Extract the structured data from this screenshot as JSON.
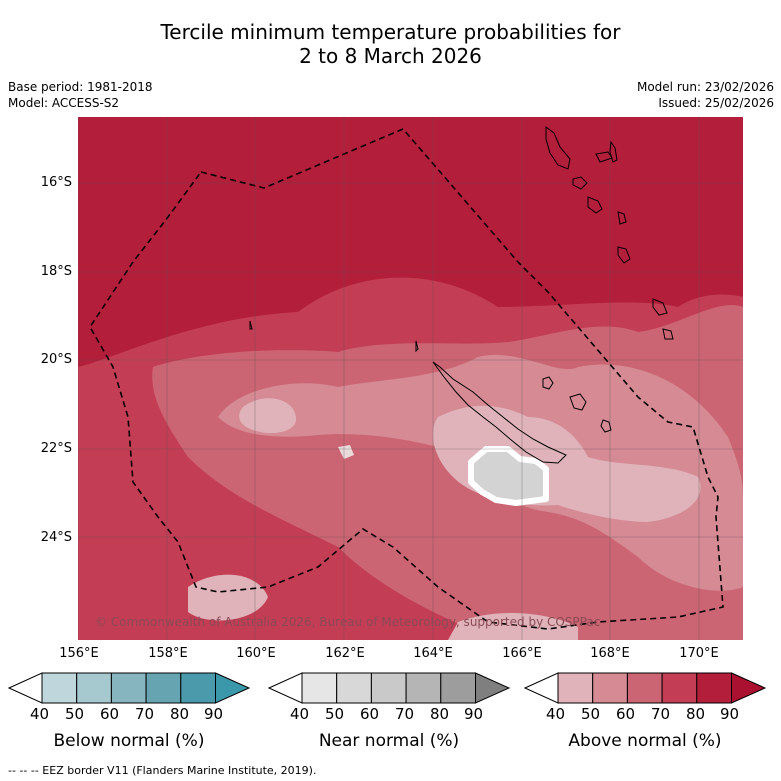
{
  "header": {
    "title_line1": "Tercile minimum temperature probabilities for",
    "title_line2": "2 to 8 March 2026"
  },
  "meta": {
    "base_period": "Base period: 1981-2018",
    "model": "Model: ACCESS-S2",
    "model_run": "Model run: 23/02/2026",
    "issued": "Issued: 25/02/2026"
  },
  "map": {
    "lat_labels": [
      "16°S",
      "18°S",
      "20°S",
      "22°S",
      "24°S"
    ],
    "lon_labels": [
      "156°E",
      "158°E",
      "160°E",
      "162°E",
      "164°E",
      "166°E",
      "168°E",
      "170°E"
    ],
    "copyright": "© Commonwealth of Australia 2026, Bureau of Meteorology, supported by COSPPac",
    "colors": {
      "above_80_90": "#b31e3b",
      "above_70_80": "#c33d54",
      "above_60_70": "#cc6573",
      "above_50_60": "#d58a94",
      "above_40_50": "#dfb3b9",
      "near_normal": "#d3d3d3"
    }
  },
  "colorbars": [
    {
      "title": "Below normal (%)",
      "ticks": [
        "40",
        "50",
        "60",
        "70",
        "80",
        "90"
      ],
      "colors": [
        "#c0d6dd",
        "#a6c8cf",
        "#86b4bf",
        "#66a4b2",
        "#4a9aab",
        "#3b98ab"
      ]
    },
    {
      "title": "Near normal (%)",
      "ticks": [
        "40",
        "50",
        "60",
        "70",
        "80",
        "90"
      ],
      "colors": [
        "#e6e6e6",
        "#d8d8d8",
        "#c9c9c9",
        "#b5b5b5",
        "#9d9d9d",
        "#7f7f7f"
      ]
    },
    {
      "title": "Above normal (%)",
      "ticks": [
        "40",
        "50",
        "60",
        "70",
        "80",
        "90"
      ],
      "colors": [
        "#dfb3b9",
        "#d58a94",
        "#cc6573",
        "#c33d54",
        "#b31e3b",
        "#aa1030"
      ]
    }
  ],
  "footer": {
    "eez_note": "--  --  -- EEZ border V11 (Flanders Marine Institute, 2019)."
  }
}
